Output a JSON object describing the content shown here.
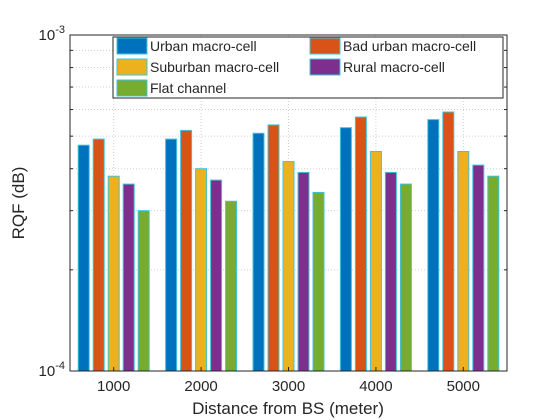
{
  "chart_data": {
    "type": "bar",
    "xlabel": "Distance from BS (meter)",
    "ylabel": "RQF (dB)",
    "yscale": "log",
    "ylim": [
      0.0001,
      0.001
    ],
    "grid": true,
    "legend_position": "top-right",
    "categories": [
      "1000",
      "2000",
      "3000",
      "4000",
      "5000"
    ],
    "y_tick_labels": [
      {
        "value": 0.001,
        "base": "10",
        "exponent": "-3"
      },
      {
        "value": 0.0001,
        "base": "10",
        "exponent": "-4"
      }
    ],
    "series": [
      {
        "name": "Urban macro-cell",
        "color": "#0072BD",
        "values": [
          0.00047,
          0.00049,
          0.00051,
          0.00053,
          0.00056
        ]
      },
      {
        "name": "Bad urban macro-cell",
        "color": "#D95319",
        "values": [
          0.00049,
          0.00052,
          0.00054,
          0.00057,
          0.00059
        ]
      },
      {
        "name": "Suburban macro-cell",
        "color": "#EDB120",
        "values": [
          0.00038,
          0.0004,
          0.00042,
          0.00045,
          0.00045
        ]
      },
      {
        "name": "Rural macro-cell",
        "color": "#7E2F8E",
        "values": [
          0.00036,
          0.00037,
          0.00039,
          0.00039,
          0.00041
        ]
      },
      {
        "name": "Flat channel",
        "color": "#77AC30",
        "values": [
          0.0003,
          0.00032,
          0.00034,
          0.00036,
          0.00038
        ]
      }
    ]
  }
}
